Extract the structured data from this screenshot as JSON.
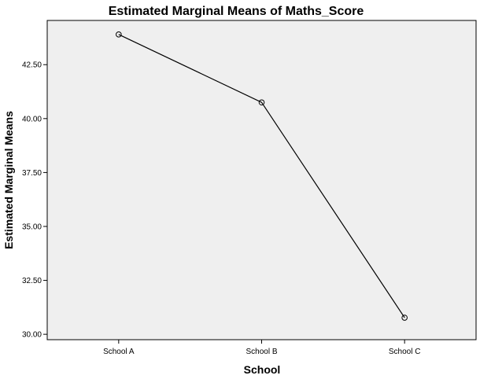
{
  "chart_data": {
    "type": "line",
    "title": "Estimated Marginal Means of Maths_Score",
    "xlabel": "School",
    "ylabel": "Estimated Marginal Means",
    "categories": [
      "School A",
      "School B",
      "School C"
    ],
    "values": [
      43.9,
      40.75,
      30.77
    ],
    "ylim": [
      29.75,
      44.55
    ],
    "yticks": [
      30.0,
      32.5,
      35.0,
      37.5,
      40.0,
      42.5
    ],
    "ytick_labels": [
      "30.00",
      "32.50",
      "35.00",
      "37.50",
      "40.00",
      "42.50"
    ],
    "grid": false,
    "legend": "none",
    "marker": "open-circle",
    "colors": {
      "line": "#000000",
      "plot_background": "#efefef",
      "frame": "#000000"
    }
  }
}
